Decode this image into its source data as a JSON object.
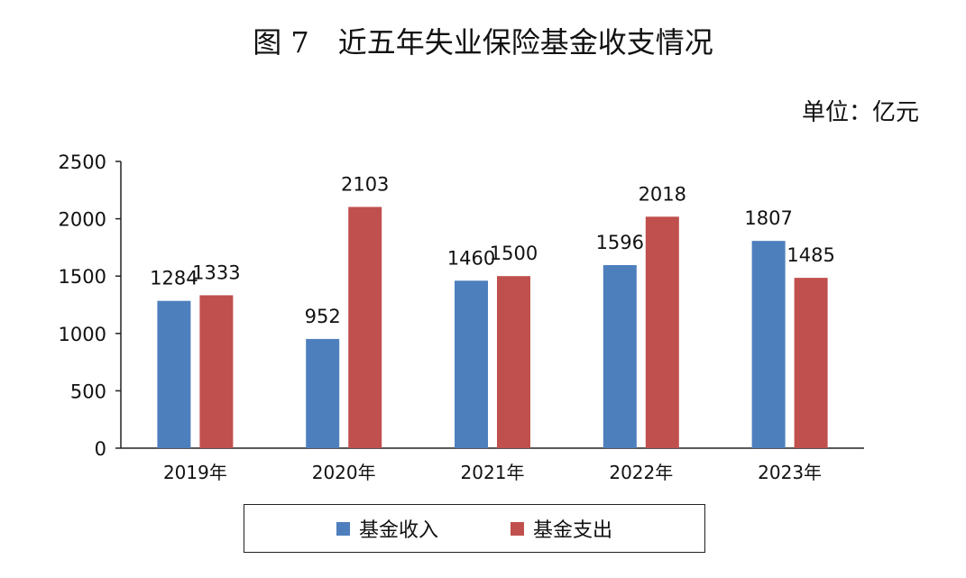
{
  "chart_data": {
    "type": "bar",
    "title": "图 7　近五年失业保险基金收支情况",
    "unit_label": "单位：亿元",
    "categories": [
      "2019年",
      "2020年",
      "2021年",
      "2022年",
      "2023年"
    ],
    "series": [
      {
        "name": "基金收入",
        "color": "#4e7fbd",
        "values": [
          1284,
          952,
          1460,
          1596,
          1807
        ]
      },
      {
        "name": "基金支出",
        "color": "#c0504d",
        "values": [
          1333,
          2103,
          1500,
          2018,
          1485
        ]
      }
    ],
    "ylim": [
      0,
      2500
    ],
    "yticks": [
      0,
      500,
      1000,
      1500,
      2000,
      2500
    ],
    "xlabel": "",
    "ylabel": "",
    "grid": false,
    "legend_position": "bottom"
  }
}
